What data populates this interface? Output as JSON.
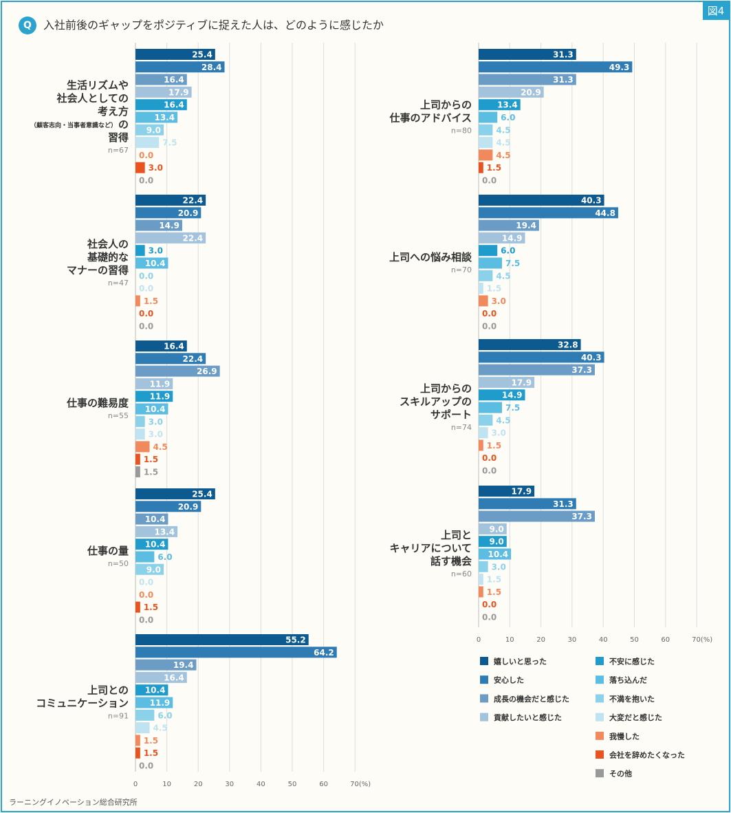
{
  "header": {
    "figure_tag": "図4",
    "q_badge": "Q",
    "title": "入社前後のギャップをポジティブに捉えた人は、どのように感じたか"
  },
  "footer": {
    "source": "ラーニングイノベーション総合研究所"
  },
  "colors": [
    "#0d5a90",
    "#2e7cb3",
    "#6a9cc6",
    "#a3c3dc",
    "#1f9ccc",
    "#5bbde2",
    "#8cd1ea",
    "#bfe3f1",
    "#f08a5d",
    "#e9531f",
    "#999999"
  ],
  "legend": [
    "嬉しいと思った",
    "安心した",
    "成長の機会だと感じた",
    "貢献したいと感じた",
    "不安に感じた",
    "落ち込んだ",
    "不満を抱いた",
    "大変だと感じた",
    "我慢した",
    "会社を辞めたくなった",
    "その他"
  ],
  "chart_data": [
    {
      "type": "bar",
      "orientation": "horizontal",
      "xlim": [
        0,
        70
      ],
      "ticks": [
        "0",
        "10",
        "20",
        "30",
        "40",
        "50",
        "60",
        "70(%)"
      ],
      "groups": [
        {
          "label_lines": [
            "生活リズムや",
            "社会人としての",
            "考え方"
          ],
          "sub_line": "（顧客志向・当事者意識など）",
          "sub_suffix": "の",
          "last_line": "習得",
          "n": "n=67",
          "values": [
            25.4,
            28.4,
            16.4,
            17.9,
            16.4,
            13.4,
            9.0,
            7.5,
            0.0,
            3.0,
            0.0
          ]
        },
        {
          "label_lines": [
            "社会人の",
            "基礎的な",
            "マナーの習得"
          ],
          "n": "n=47",
          "values": [
            22.4,
            20.9,
            14.9,
            22.4,
            3.0,
            10.4,
            0.0,
            0.0,
            1.5,
            0.0,
            0.0
          ]
        },
        {
          "label_lines": [
            "仕事の難易度"
          ],
          "n": "n=55",
          "values": [
            16.4,
            22.4,
            26.9,
            11.9,
            11.9,
            10.4,
            3.0,
            3.0,
            4.5,
            1.5,
            1.5
          ]
        },
        {
          "label_lines": [
            "仕事の量"
          ],
          "n": "n=50",
          "values": [
            25.4,
            20.9,
            10.4,
            13.4,
            10.4,
            6.0,
            9.0,
            0.0,
            0.0,
            1.5,
            0.0
          ]
        },
        {
          "label_lines": [
            "上司との",
            "コミュニケーション"
          ],
          "n": "n=91",
          "values": [
            55.2,
            64.2,
            19.4,
            16.4,
            10.4,
            11.9,
            6.0,
            4.5,
            1.5,
            1.5,
            0.0
          ]
        }
      ]
    },
    {
      "type": "bar",
      "orientation": "horizontal",
      "xlim": [
        0,
        70
      ],
      "ticks": [
        "0",
        "10",
        "20",
        "30",
        "40",
        "50",
        "60",
        "70(%)"
      ],
      "groups": [
        {
          "label_lines": [
            "上司からの",
            "仕事のアドバイス"
          ],
          "n": "n=80",
          "values": [
            31.3,
            49.3,
            31.3,
            20.9,
            13.4,
            6.0,
            4.5,
            4.5,
            4.5,
            1.5,
            0.0
          ]
        },
        {
          "label_lines": [
            "上司への悩み相談"
          ],
          "n": "n=70",
          "values": [
            40.3,
            44.8,
            19.4,
            14.9,
            6.0,
            7.5,
            4.5,
            1.5,
            3.0,
            0.0,
            0.0
          ]
        },
        {
          "label_lines": [
            "上司からの",
            "スキルアップの",
            "サポート"
          ],
          "n": "n=74",
          "values": [
            32.8,
            40.3,
            37.3,
            17.9,
            14.9,
            7.5,
            4.5,
            3.0,
            1.5,
            0.0,
            0.0
          ]
        },
        {
          "label_lines": [
            "上司と",
            "キャリアについて",
            "話す機会"
          ],
          "n": "n=60",
          "values": [
            17.9,
            31.3,
            37.3,
            9.0,
            9.0,
            10.4,
            3.0,
            1.5,
            1.5,
            0.0,
            0.0
          ]
        }
      ]
    }
  ]
}
